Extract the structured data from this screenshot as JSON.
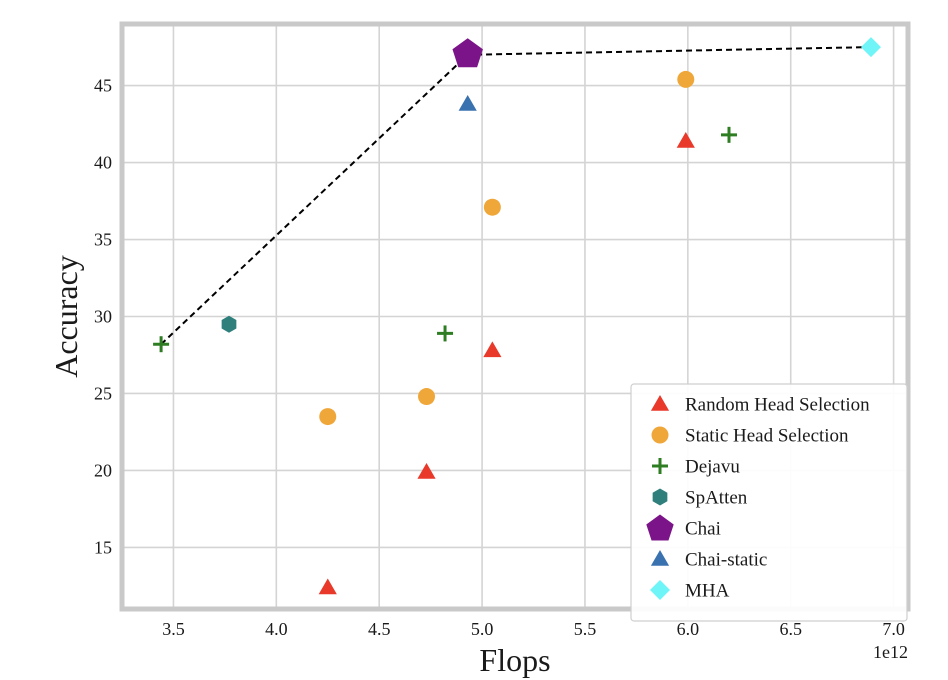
{
  "chart_data": {
    "type": "scatter",
    "title": "",
    "xlabel": "Flops",
    "ylabel": "Accuracy",
    "x_offset_label": "1e12",
    "xlim": [
      3.25,
      7.07
    ],
    "ylim": [
      11.0,
      49.0
    ],
    "xticks": [
      3.5,
      4.0,
      4.5,
      5.0,
      5.5,
      6.0,
      6.5,
      7.0
    ],
    "xtick_labels": [
      "3.5",
      "4.0",
      "4.5",
      "5.0",
      "5.5",
      "6.0",
      "6.5",
      "7.0"
    ],
    "yticks": [
      15,
      20,
      25,
      30,
      35,
      40,
      45
    ],
    "ytick_labels": [
      "15",
      "20",
      "25",
      "30",
      "35",
      "40",
      "45"
    ],
    "grid": true,
    "legend_position": "lower-right",
    "series": [
      {
        "name": "Random Head Selection",
        "marker": "triangle",
        "color": "#e8392a",
        "points": [
          [
            4.25,
            12.4
          ],
          [
            4.73,
            19.9
          ],
          [
            5.05,
            27.8
          ],
          [
            5.99,
            41.4
          ]
        ]
      },
      {
        "name": "Static Head Selection",
        "marker": "circle",
        "color": "#f0a73a",
        "points": [
          [
            4.25,
            23.5
          ],
          [
            4.73,
            24.8
          ],
          [
            5.05,
            37.1
          ],
          [
            5.99,
            45.4
          ]
        ]
      },
      {
        "name": "Dejavu",
        "marker": "plus",
        "color": "#2e7d22",
        "points": [
          [
            3.44,
            28.2
          ],
          [
            4.82,
            28.9
          ],
          [
            6.2,
            41.8
          ]
        ]
      },
      {
        "name": "SpAtten",
        "marker": "hexagon",
        "color": "#2f7f7c",
        "points": [
          [
            3.77,
            29.5
          ]
        ]
      },
      {
        "name": "Chai",
        "marker": "pentagon",
        "color": "#7b1488",
        "points": [
          [
            4.93,
            47.1
          ]
        ]
      },
      {
        "name": "Chai-static",
        "marker": "triangle",
        "color": "#3a72b0",
        "points": [
          [
            4.93,
            43.8
          ]
        ]
      },
      {
        "name": "MHA",
        "marker": "diamond",
        "color": "#6ff5f7",
        "points": [
          [
            6.89,
            47.5
          ]
        ]
      }
    ],
    "frontier_line": {
      "style": "dashed",
      "color": "#000000",
      "points": [
        [
          3.44,
          28.2
        ],
        [
          4.93,
          47.0
        ],
        [
          6.89,
          47.5
        ]
      ]
    }
  }
}
